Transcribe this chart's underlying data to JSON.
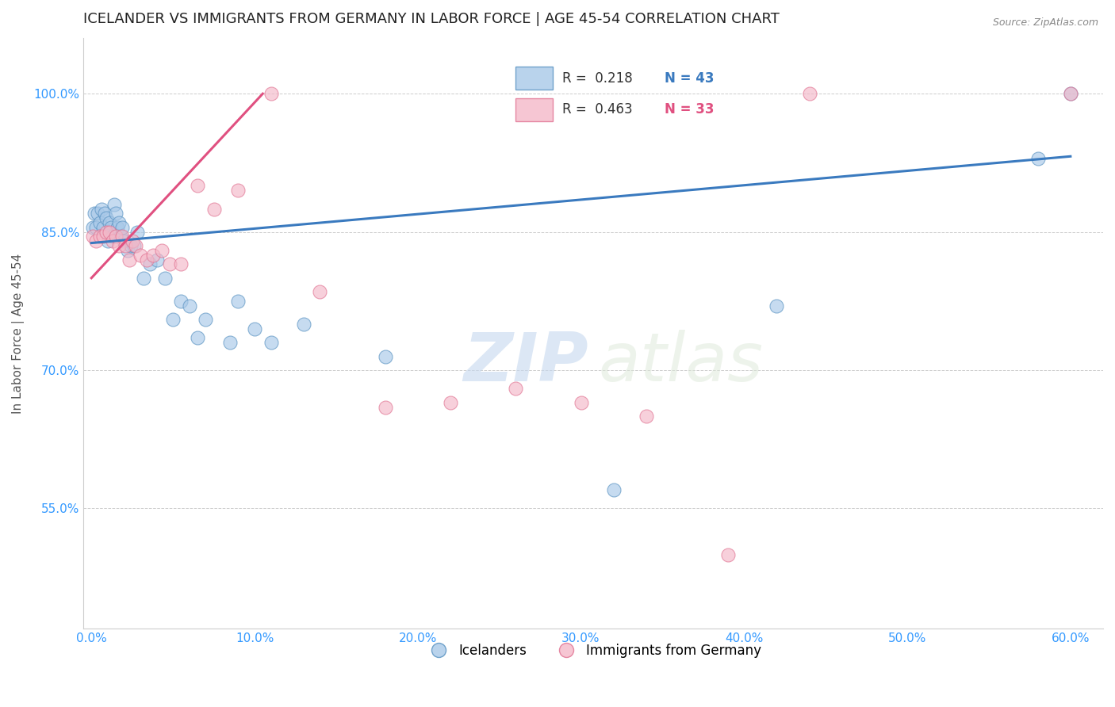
{
  "title": "ICELANDER VS IMMIGRANTS FROM GERMANY IN LABOR FORCE | AGE 45-54 CORRELATION CHART",
  "source": "Source: ZipAtlas.com",
  "xlabel_ticks": [
    "0.0%",
    "10.0%",
    "20.0%",
    "30.0%",
    "40.0%",
    "50.0%",
    "60.0%"
  ],
  "xlabel_vals": [
    0.0,
    0.1,
    0.2,
    0.3,
    0.4,
    0.5,
    0.6
  ],
  "ylabel_ticks": [
    "100.0%",
    "85.0%",
    "70.0%",
    "55.0%"
  ],
  "ylabel_vals": [
    1.0,
    0.85,
    0.7,
    0.55
  ],
  "xlim": [
    -0.005,
    0.62
  ],
  "ylim": [
    0.42,
    1.06
  ],
  "ylabel": "In Labor Force | Age 45-54",
  "watermark_zip": "ZIP",
  "watermark_atlas": "atlas",
  "legend_blue_R": "R =  0.218",
  "legend_blue_N": "N = 43",
  "legend_pink_R": "R =  0.463",
  "legend_pink_N": "N = 33",
  "blue_scatter_x": [
    0.001,
    0.002,
    0.003,
    0.004,
    0.005,
    0.006,
    0.007,
    0.008,
    0.009,
    0.01,
    0.011,
    0.012,
    0.013,
    0.014,
    0.015,
    0.016,
    0.017,
    0.018,
    0.019,
    0.02,
    0.022,
    0.024,
    0.026,
    0.028,
    0.032,
    0.036,
    0.04,
    0.045,
    0.05,
    0.055,
    0.06,
    0.065,
    0.07,
    0.085,
    0.09,
    0.1,
    0.11,
    0.13,
    0.18,
    0.32,
    0.42,
    0.58,
    0.6
  ],
  "blue_scatter_y": [
    0.855,
    0.87,
    0.855,
    0.87,
    0.86,
    0.875,
    0.855,
    0.87,
    0.865,
    0.84,
    0.86,
    0.855,
    0.845,
    0.88,
    0.87,
    0.855,
    0.86,
    0.845,
    0.855,
    0.84,
    0.83,
    0.835,
    0.835,
    0.85,
    0.8,
    0.815,
    0.82,
    0.8,
    0.755,
    0.775,
    0.77,
    0.735,
    0.755,
    0.73,
    0.775,
    0.745,
    0.73,
    0.75,
    0.715,
    0.57,
    0.77,
    0.93,
    1.0
  ],
  "pink_scatter_x": [
    0.001,
    0.003,
    0.005,
    0.007,
    0.009,
    0.011,
    0.013,
    0.015,
    0.017,
    0.019,
    0.021,
    0.023,
    0.025,
    0.027,
    0.03,
    0.034,
    0.038,
    0.043,
    0.048,
    0.055,
    0.065,
    0.075,
    0.09,
    0.11,
    0.14,
    0.18,
    0.22,
    0.26,
    0.3,
    0.34,
    0.39,
    0.44,
    0.6
  ],
  "pink_scatter_y": [
    0.845,
    0.84,
    0.845,
    0.845,
    0.85,
    0.85,
    0.84,
    0.845,
    0.835,
    0.845,
    0.835,
    0.82,
    0.84,
    0.835,
    0.825,
    0.82,
    0.825,
    0.83,
    0.815,
    0.815,
    0.9,
    0.875,
    0.895,
    1.0,
    0.785,
    0.66,
    0.665,
    0.68,
    0.665,
    0.65,
    0.5,
    1.0,
    1.0
  ],
  "blue_line_x": [
    0.0,
    0.6
  ],
  "blue_line_y": [
    0.838,
    0.932
  ],
  "pink_line_x": [
    0.0,
    0.105
  ],
  "pink_line_y": [
    0.8,
    1.0
  ],
  "blue_color": "#a8c8e8",
  "pink_color": "#f4b8c8",
  "blue_edge_color": "#5590c0",
  "pink_edge_color": "#e07090",
  "blue_line_color": "#3a7abf",
  "pink_line_color": "#e05080",
  "title_fontsize": 13,
  "axis_tick_color": "#3399ff",
  "grid_color": "#cccccc",
  "grid_style": "--"
}
